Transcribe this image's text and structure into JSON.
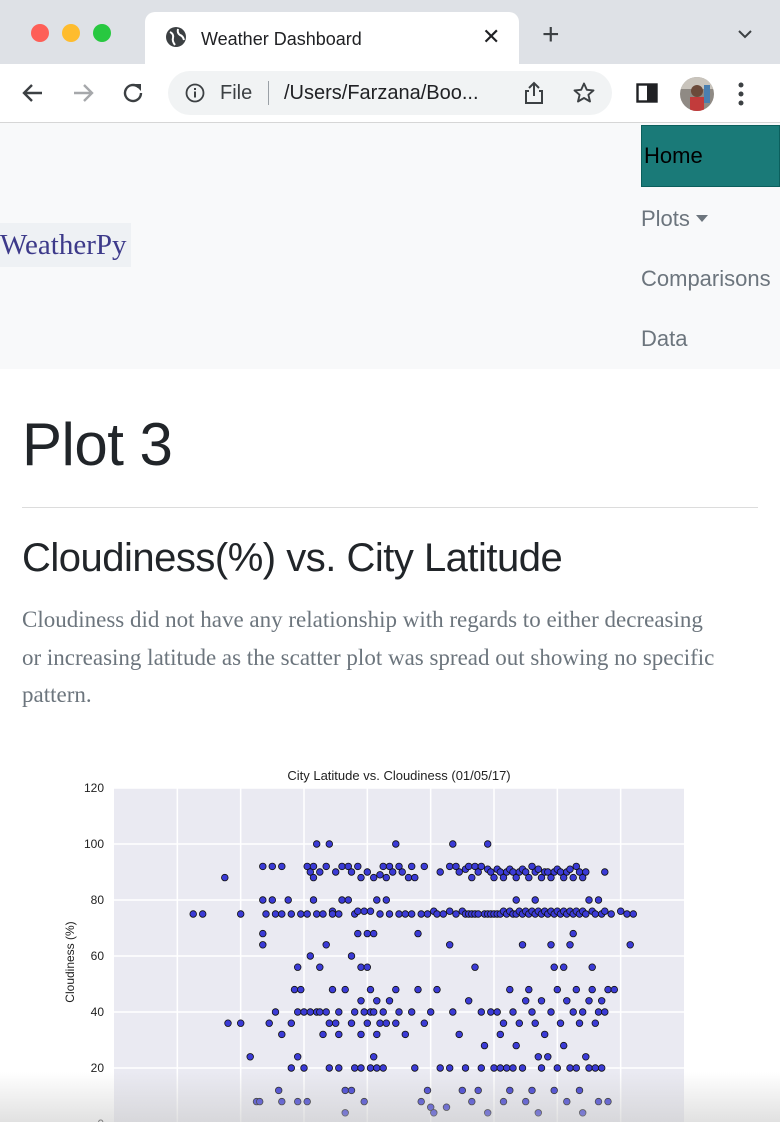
{
  "browser": {
    "tab_title": "Weather Dashboard",
    "scheme_label": "File",
    "url": "/Users/Farzana/Boo..."
  },
  "navbar": {
    "brand": "WeatherPy",
    "items": [
      {
        "label": "Home",
        "active": true
      },
      {
        "label": "Plots",
        "dropdown": true
      },
      {
        "label": "Comparisons"
      },
      {
        "label": "Data"
      }
    ]
  },
  "page": {
    "title": "Plot 3",
    "subtitle": "Cloudiness(%) vs. City Latitude",
    "description": "Cloudiness did not have any relationship with regards to either decreasing or increasing latitude as the scatter plot was spread out showing no specific pattern."
  },
  "chart_data": {
    "type": "scatter",
    "title": "City Latitude vs. Cloudiness (01/05/17)",
    "ylabel": "Cloudiness (%)",
    "xlabel": "",
    "ylim": [
      0,
      120
    ],
    "yticks": [
      0,
      20,
      40,
      60,
      80,
      100,
      120
    ],
    "xlim": [
      -80,
      100
    ],
    "grid": true,
    "marker_color": "#3b3bd6",
    "background": "#eaeaf2",
    "points": [
      [
        -55,
        75
      ],
      [
        -52,
        75
      ],
      [
        -45,
        88
      ],
      [
        -40,
        75
      ],
      [
        -44,
        36
      ],
      [
        -40,
        36
      ],
      [
        -37,
        24
      ],
      [
        -35,
        8
      ],
      [
        -34,
        8
      ],
      [
        -33,
        92
      ],
      [
        -33,
        80
      ],
      [
        -32,
        75
      ],
      [
        -33,
        68
      ],
      [
        -33,
        64
      ],
      [
        -31,
        36
      ],
      [
        -30,
        92
      ],
      [
        -30,
        80
      ],
      [
        -29,
        75
      ],
      [
        -29,
        40
      ],
      [
        -28,
        12
      ],
      [
        -27,
        92
      ],
      [
        -27,
        75
      ],
      [
        -27,
        32
      ],
      [
        -27,
        8
      ],
      [
        -25,
        80
      ],
      [
        -24,
        75
      ],
      [
        -24,
        36
      ],
      [
        -24,
        20
      ],
      [
        -23,
        48
      ],
      [
        -22,
        56
      ],
      [
        -22,
        40
      ],
      [
        -22,
        24
      ],
      [
        -22,
        8
      ],
      [
        -21,
        75
      ],
      [
        -21,
        48
      ],
      [
        -20,
        40
      ],
      [
        -20,
        20
      ],
      [
        -19,
        92
      ],
      [
        -19,
        75
      ],
      [
        -19,
        8
      ],
      [
        -18,
        90
      ],
      [
        -18,
        60
      ],
      [
        -18,
        40
      ],
      [
        -17,
        92
      ],
      [
        -17,
        88
      ],
      [
        -17,
        80
      ],
      [
        -16,
        100
      ],
      [
        -16,
        75
      ],
      [
        -16,
        40
      ],
      [
        -15,
        90
      ],
      [
        -15,
        56
      ],
      [
        -15,
        40
      ],
      [
        -14,
        75
      ],
      [
        -14,
        32
      ],
      [
        -13,
        92
      ],
      [
        -13,
        64
      ],
      [
        -13,
        40
      ],
      [
        -12,
        100
      ],
      [
        -12,
        36
      ],
      [
        -12,
        20
      ],
      [
        -11,
        76
      ],
      [
        -11,
        75
      ],
      [
        -11,
        48
      ],
      [
        -10,
        90
      ],
      [
        -10,
        36
      ],
      [
        -9,
        75
      ],
      [
        -9,
        40
      ],
      [
        -9,
        32
      ],
      [
        -9,
        20
      ],
      [
        -8,
        92
      ],
      [
        -8,
        80
      ],
      [
        -7,
        48
      ],
      [
        -7,
        12
      ],
      [
        -7,
        4
      ],
      [
        -6,
        92
      ],
      [
        -6,
        80
      ],
      [
        -5,
        90
      ],
      [
        -5,
        60
      ],
      [
        -5,
        36
      ],
      [
        -5,
        12
      ],
      [
        -4,
        75
      ],
      [
        -4,
        40
      ],
      [
        -4,
        20
      ],
      [
        -3,
        92
      ],
      [
        -3,
        76
      ],
      [
        -3,
        68
      ],
      [
        -2,
        88
      ],
      [
        -2,
        56
      ],
      [
        -2,
        44
      ],
      [
        -2,
        32
      ],
      [
        -2,
        20
      ],
      [
        -1,
        76
      ],
      [
        -1,
        40
      ],
      [
        -1,
        8
      ],
      [
        0,
        90
      ],
      [
        0,
        68
      ],
      [
        0,
        56
      ],
      [
        0,
        36
      ],
      [
        1,
        76
      ],
      [
        1,
        48
      ],
      [
        1,
        40
      ],
      [
        1,
        20
      ],
      [
        2,
        88
      ],
      [
        2,
        68
      ],
      [
        2,
        40
      ],
      [
        2,
        24
      ],
      [
        3,
        80
      ],
      [
        3,
        44
      ],
      [
        3,
        32
      ],
      [
        3,
        20
      ],
      [
        4,
        89
      ],
      [
        4,
        75
      ],
      [
        4,
        36
      ],
      [
        5,
        92
      ],
      [
        5,
        40
      ],
      [
        5,
        20
      ],
      [
        6,
        88
      ],
      [
        6,
        80
      ],
      [
        6,
        36
      ],
      [
        7,
        92
      ],
      [
        7,
        75
      ],
      [
        7,
        44
      ],
      [
        8,
        90
      ],
      [
        9,
        100
      ],
      [
        9,
        48
      ],
      [
        9,
        36
      ],
      [
        10,
        92
      ],
      [
        10,
        75
      ],
      [
        10,
        40
      ],
      [
        11,
        90
      ],
      [
        12,
        75
      ],
      [
        12,
        32
      ],
      [
        13,
        88
      ],
      [
        14,
        92
      ],
      [
        14,
        75
      ],
      [
        14,
        40
      ],
      [
        15,
        88
      ],
      [
        15,
        20
      ],
      [
        16,
        68
      ],
      [
        16,
        48
      ],
      [
        17,
        75
      ],
      [
        17,
        8
      ],
      [
        18,
        92
      ],
      [
        18,
        36
      ],
      [
        19,
        75
      ],
      [
        19,
        12
      ],
      [
        20,
        40
      ],
      [
        20,
        6
      ],
      [
        21,
        76
      ],
      [
        21,
        4
      ],
      [
        22,
        75
      ],
      [
        22,
        48
      ],
      [
        23,
        90
      ],
      [
        23,
        20
      ],
      [
        24,
        75
      ],
      [
        25,
        6
      ],
      [
        26,
        92
      ],
      [
        26,
        76
      ],
      [
        26,
        64
      ],
      [
        26,
        20
      ],
      [
        27,
        100
      ],
      [
        27,
        40
      ],
      [
        28,
        92
      ],
      [
        28,
        75
      ],
      [
        29,
        90
      ],
      [
        29,
        32
      ],
      [
        30,
        76
      ],
      [
        30,
        12
      ],
      [
        31,
        91
      ],
      [
        31,
        75
      ],
      [
        31,
        20
      ],
      [
        32,
        92
      ],
      [
        32,
        75
      ],
      [
        32,
        44
      ],
      [
        33,
        88
      ],
      [
        33,
        75
      ],
      [
        33,
        8
      ],
      [
        34,
        92
      ],
      [
        34,
        75
      ],
      [
        34,
        56
      ],
      [
        35,
        90
      ],
      [
        35,
        75
      ],
      [
        35,
        12
      ],
      [
        36,
        92
      ],
      [
        36,
        40
      ],
      [
        36,
        20
      ],
      [
        37,
        75
      ],
      [
        37,
        28
      ],
      [
        38,
        100
      ],
      [
        38,
        91
      ],
      [
        38,
        75
      ],
      [
        38,
        4
      ],
      [
        39,
        90
      ],
      [
        39,
        75
      ],
      [
        39,
        40
      ],
      [
        40,
        88
      ],
      [
        40,
        75
      ],
      [
        40,
        20
      ],
      [
        41,
        91
      ],
      [
        41,
        75
      ],
      [
        41,
        40
      ],
      [
        42,
        90
      ],
      [
        42,
        75
      ],
      [
        42,
        32
      ],
      [
        42,
        20
      ],
      [
        43,
        88
      ],
      [
        43,
        76
      ],
      [
        43,
        36
      ],
      [
        43,
        8
      ],
      [
        44,
        90
      ],
      [
        44,
        75
      ],
      [
        44,
        20
      ],
      [
        45,
        91
      ],
      [
        45,
        76
      ],
      [
        45,
        48
      ],
      [
        45,
        12
      ],
      [
        46,
        90
      ],
      [
        46,
        75
      ],
      [
        46,
        40
      ],
      [
        46,
        20
      ],
      [
        47,
        88
      ],
      [
        47,
        75
      ],
      [
        47,
        80
      ],
      [
        47,
        28
      ],
      [
        48,
        90
      ],
      [
        48,
        76
      ],
      [
        48,
        36
      ],
      [
        49,
        91
      ],
      [
        49,
        75
      ],
      [
        49,
        64
      ],
      [
        49,
        20
      ],
      [
        50,
        90
      ],
      [
        50,
        76
      ],
      [
        50,
        44
      ],
      [
        50,
        8
      ],
      [
        51,
        88
      ],
      [
        51,
        75
      ],
      [
        51,
        48
      ],
      [
        52,
        92
      ],
      [
        52,
        76
      ],
      [
        52,
        40
      ],
      [
        52,
        12
      ],
      [
        53,
        90
      ],
      [
        53,
        75
      ],
      [
        53,
        80
      ],
      [
        53,
        36
      ],
      [
        54,
        91
      ],
      [
        54,
        76
      ],
      [
        54,
        24
      ],
      [
        54,
        4
      ],
      [
        55,
        88
      ],
      [
        55,
        75
      ],
      [
        55,
        44
      ],
      [
        55,
        20
      ],
      [
        56,
        90
      ],
      [
        56,
        76
      ],
      [
        56,
        32
      ],
      [
        57,
        90
      ],
      [
        57,
        75
      ],
      [
        57,
        24
      ],
      [
        58,
        88
      ],
      [
        58,
        76
      ],
      [
        58,
        64
      ],
      [
        58,
        40
      ],
      [
        59,
        90
      ],
      [
        59,
        75
      ],
      [
        59,
        56
      ],
      [
        59,
        12
      ],
      [
        60,
        91
      ],
      [
        60,
        76
      ],
      [
        60,
        48
      ],
      [
        60,
        20
      ],
      [
        61,
        90
      ],
      [
        61,
        75
      ],
      [
        61,
        36
      ],
      [
        62,
        88
      ],
      [
        62,
        76
      ],
      [
        62,
        56
      ],
      [
        62,
        28
      ],
      [
        63,
        90
      ],
      [
        63,
        75
      ],
      [
        63,
        44
      ],
      [
        63,
        8
      ],
      [
        64,
        91
      ],
      [
        64,
        76
      ],
      [
        64,
        64
      ],
      [
        64,
        20
      ],
      [
        65,
        88
      ],
      [
        65,
        75
      ],
      [
        65,
        68
      ],
      [
        65,
        40
      ],
      [
        66,
        92
      ],
      [
        66,
        76
      ],
      [
        66,
        48
      ],
      [
        66,
        20
      ],
      [
        67,
        90
      ],
      [
        67,
        75
      ],
      [
        67,
        36
      ],
      [
        67,
        12
      ],
      [
        68,
        88
      ],
      [
        68,
        76
      ],
      [
        68,
        40
      ],
      [
        68,
        4
      ],
      [
        69,
        90
      ],
      [
        69,
        75
      ],
      [
        69,
        24
      ],
      [
        70,
        80
      ],
      [
        70,
        44
      ],
      [
        70,
        20
      ],
      [
        71,
        76
      ],
      [
        71,
        56
      ],
      [
        71,
        48
      ],
      [
        72,
        75
      ],
      [
        72,
        36
      ],
      [
        72,
        20
      ],
      [
        73,
        80
      ],
      [
        73,
        40
      ],
      [
        73,
        8
      ],
      [
        74,
        75
      ],
      [
        74,
        44
      ],
      [
        74,
        20
      ],
      [
        75,
        90
      ],
      [
        75,
        76
      ],
      [
        75,
        40
      ],
      [
        76,
        48
      ],
      [
        76,
        8
      ],
      [
        77,
        75
      ],
      [
        78,
        48
      ],
      [
        80,
        76
      ],
      [
        82,
        75
      ],
      [
        83,
        64
      ],
      [
        84,
        75
      ]
    ]
  }
}
